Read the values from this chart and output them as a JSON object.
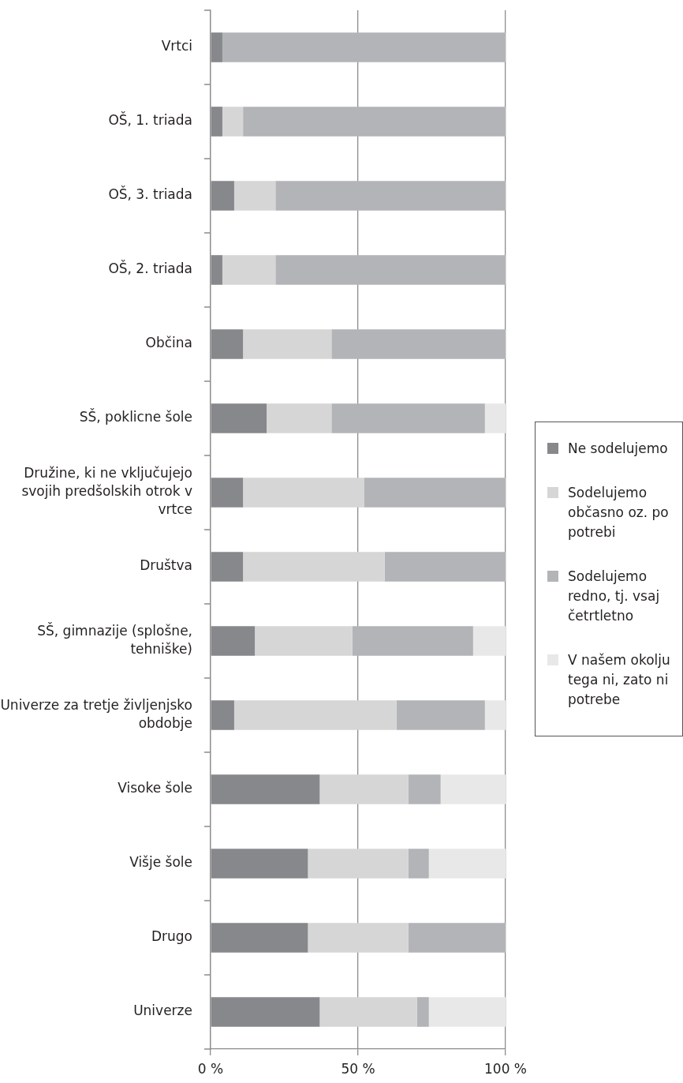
{
  "chart_data": {
    "type": "bar",
    "orientation": "horizontal",
    "stacked": true,
    "categories": [
      "Vrtci",
      "OŠ, 1. triada",
      "OŠ, 3. triada",
      "OŠ, 2. triada",
      "Občina",
      "SŠ, poklicne šole",
      "Družine, ki ne vključujejo svojih predšolskih otrok v vrtce",
      "Društva",
      "SŠ, gimnazije (splošne, tehniške)",
      "Univerze za tretje življenjsko obdobje",
      "Visoke šole",
      "Višje šole",
      "Drugo",
      "Univerze"
    ],
    "series": [
      {
        "name": "Ne sodelujemo",
        "color": "#87888b",
        "values": [
          4,
          4,
          8,
          4,
          11,
          19,
          11,
          11,
          15,
          8,
          37,
          33,
          33,
          37
        ]
      },
      {
        "name": "Sodelujemo občasno oz. po potrebi",
        "color": "#d6d6d7",
        "values": [
          0,
          7,
          14,
          18,
          30,
          22,
          41,
          48,
          33,
          55,
          30,
          34,
          34,
          33
        ]
      },
      {
        "name": "Sodelujemo redno, tj. vsaj četrtletno",
        "color": "#b3b4b7",
        "values": [
          96,
          89,
          78,
          78,
          59,
          52,
          48,
          41,
          41,
          30,
          11,
          7,
          33,
          4
        ]
      },
      {
        "name": "V našem okolju tega ni, zato ni potrebe",
        "color": "#e8e8e9",
        "values": [
          0,
          0,
          0,
          0,
          0,
          7,
          0,
          0,
          11,
          7,
          22,
          26,
          0,
          26
        ]
      }
    ],
    "xlim": [
      0,
      100
    ],
    "xticks": [
      {
        "value": 0,
        "label": "0 %"
      },
      {
        "value": 50,
        "label": "50 %"
      },
      {
        "value": 100,
        "label": "100 %"
      }
    ],
    "grid": "x",
    "legend": "right"
  }
}
